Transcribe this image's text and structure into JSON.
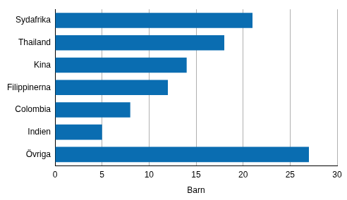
{
  "chart_data": {
    "type": "bar",
    "orientation": "horizontal",
    "categories": [
      "Sydafrika",
      "Thailand",
      "Kina",
      "Filippinerna",
      "Colombia",
      "Indien",
      "Övriga"
    ],
    "values": [
      21,
      18,
      14,
      12,
      8,
      5,
      27
    ],
    "color": "#0a6db1",
    "x_label": "Barn",
    "xlim": [
      0,
      30
    ],
    "xticks": [
      0,
      5,
      10,
      15,
      20,
      25,
      30
    ],
    "grid": true
  }
}
